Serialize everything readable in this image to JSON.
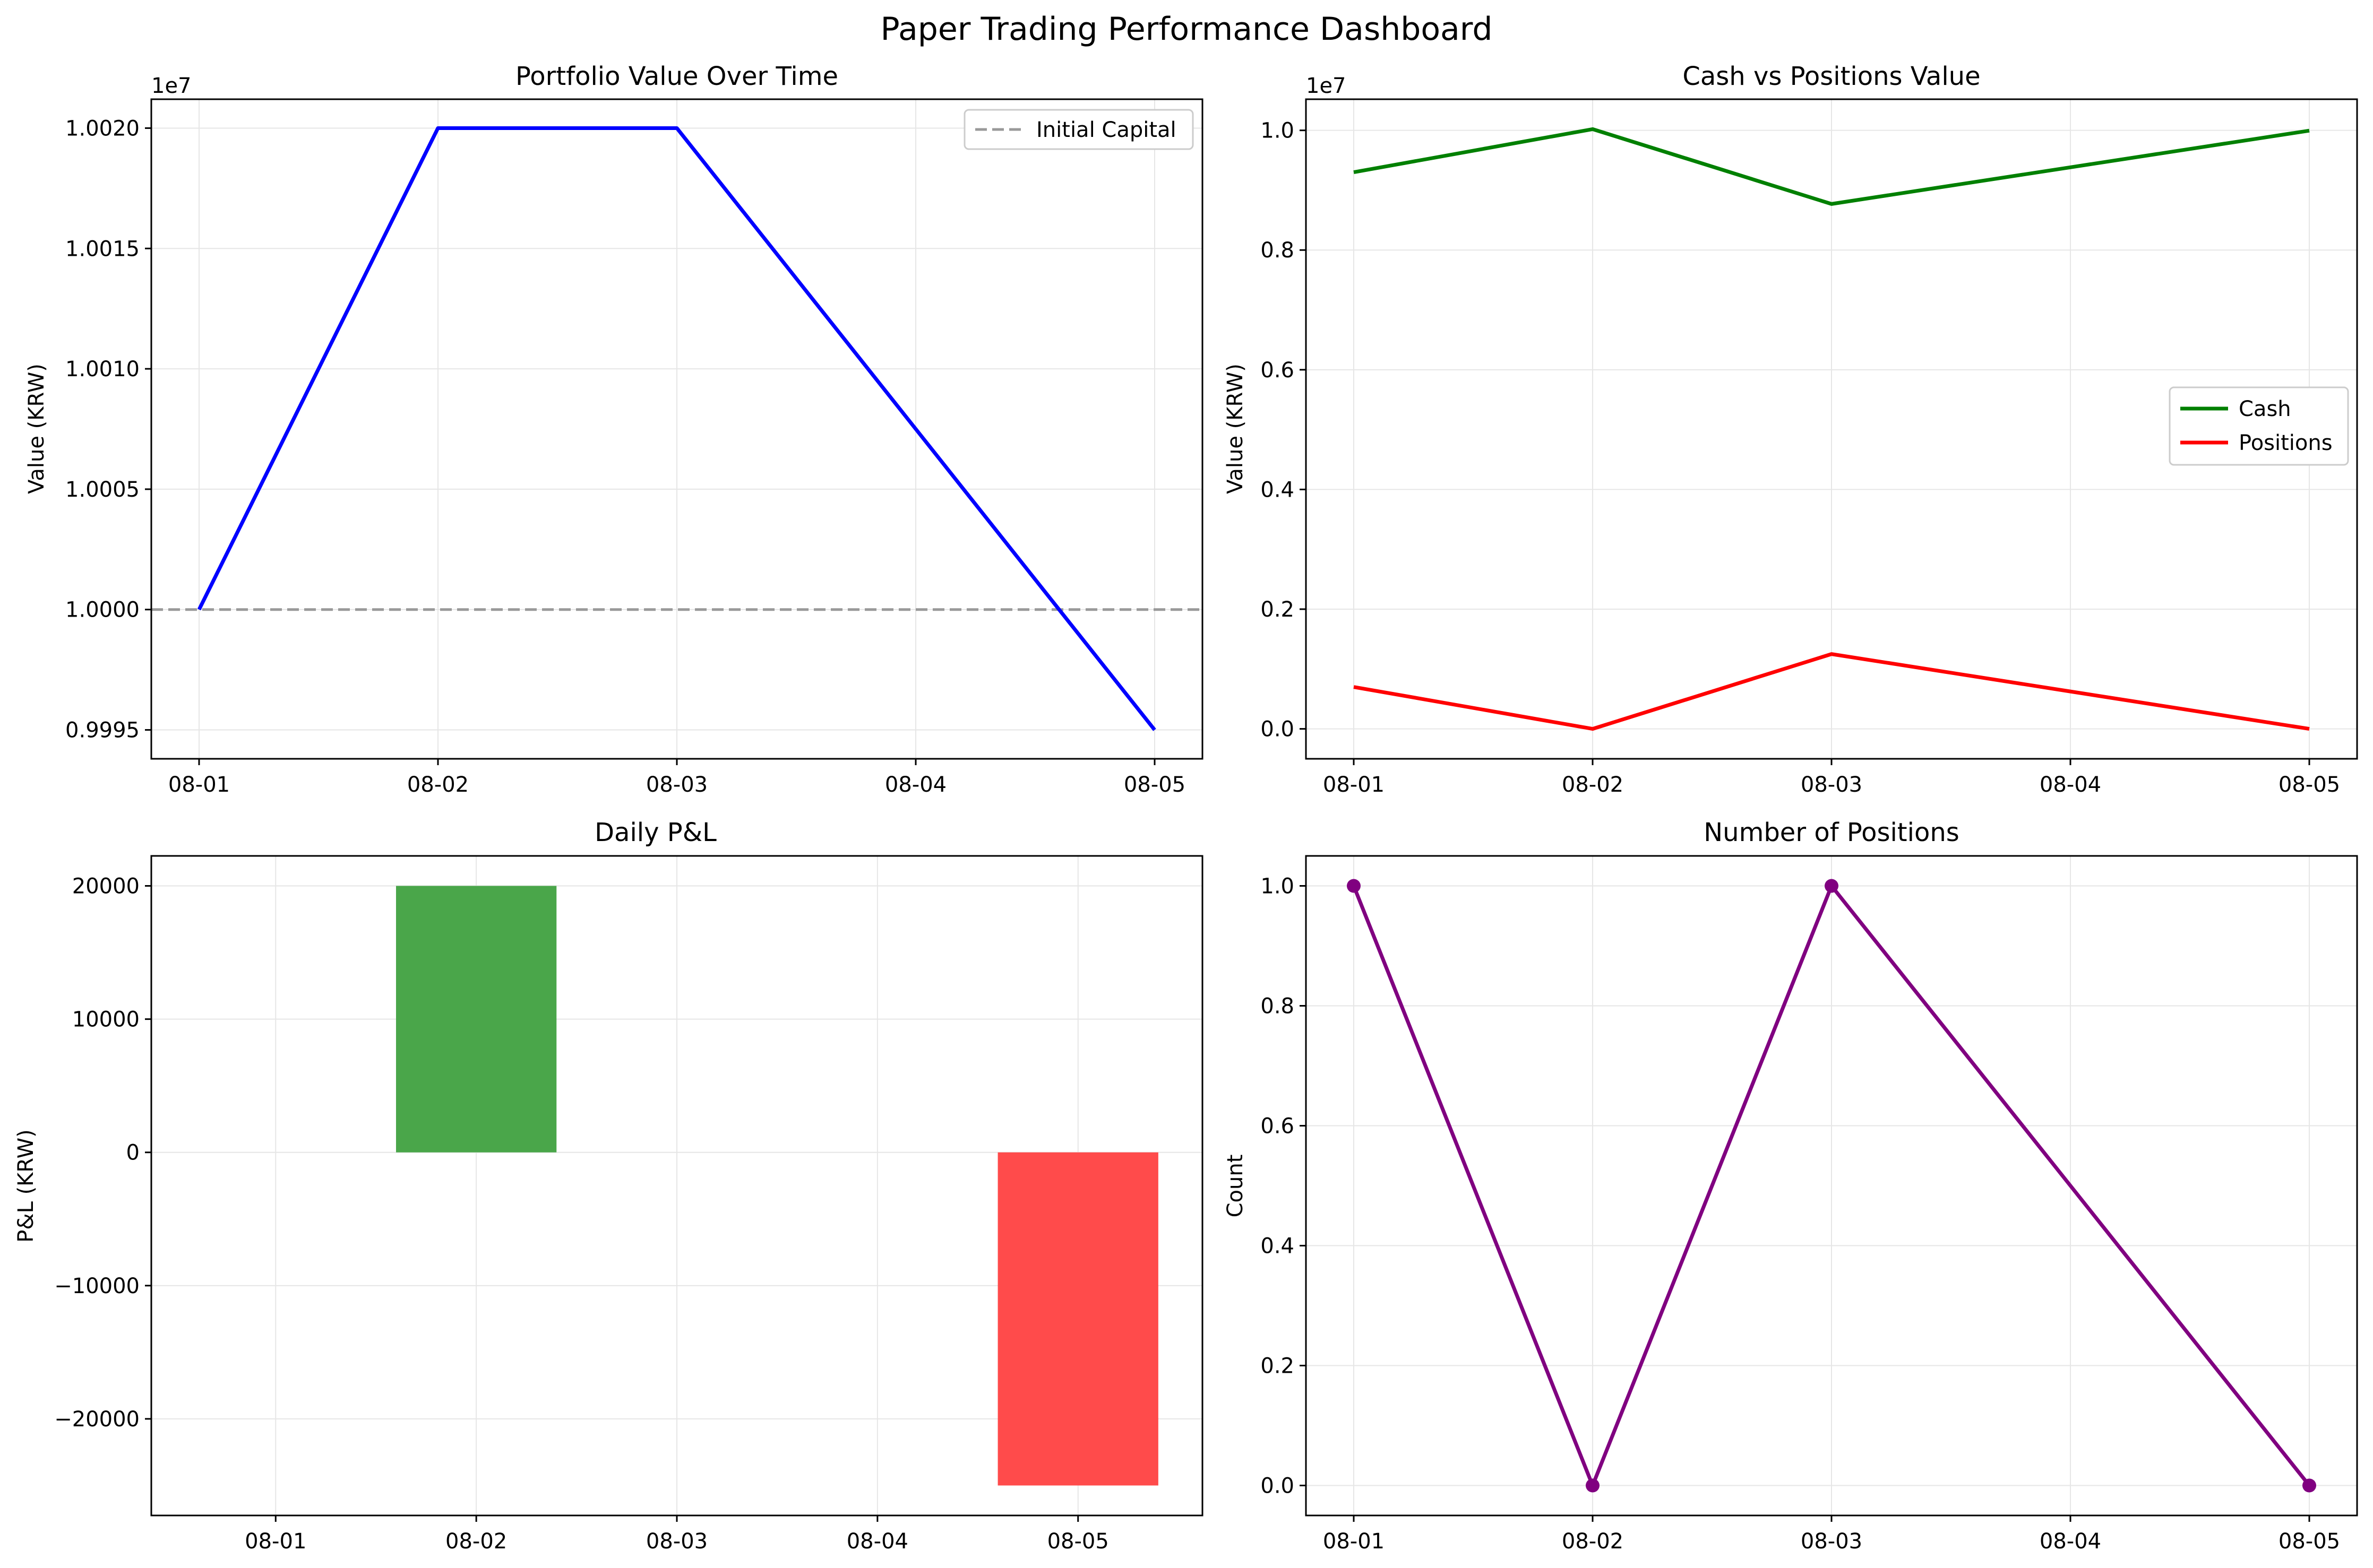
{
  "title": "Paper Trading Performance Dashboard",
  "colors": {
    "portfolio": "#0000ff",
    "initial_capital": "#999999",
    "cash": "#008000",
    "positions": "#ff0000",
    "pnl_positive": "#4aa64a",
    "pnl_negative": "#ff4b4b",
    "count": "#800080",
    "grid": "#e6e6e6"
  },
  "chart_data": [
    {
      "type": "line",
      "title": "Portfolio Value Over Time",
      "xlabel": "",
      "ylabel": "Value (KRW)",
      "offset_label": "1e7",
      "categories": [
        "08-01",
        "08-02",
        "08-03",
        "08-04",
        "08-05"
      ],
      "series": [
        {
          "values": [
            10000000,
            10020000,
            10020000,
            null,
            9995000
          ]
        }
      ],
      "reference_line": {
        "name": "Initial Capital",
        "value": 10000000,
        "style": "dashed"
      },
      "yticks": [
        9995000,
        10000000,
        10005000,
        10010000,
        10015000,
        10020000
      ],
      "ytick_labels": [
        "0.9995",
        "1.0000",
        "1.0005",
        "1.0010",
        "1.0015",
        "1.0020"
      ],
      "ylim": [
        9993800,
        10021200
      ],
      "xlim_index": [
        -0.2,
        4.2
      ],
      "grid": true,
      "legend": "top-right"
    },
    {
      "type": "line",
      "title": "Cash vs Positions Value",
      "xlabel": "",
      "ylabel": "Value (KRW)",
      "offset_label": "1e7",
      "categories": [
        "08-01",
        "08-02",
        "08-03",
        "08-04",
        "08-05"
      ],
      "series": [
        {
          "name": "Cash",
          "values": [
            9300000,
            10020000,
            8770000,
            null,
            9995000
          ]
        },
        {
          "name": "Positions",
          "values": [
            700000,
            0,
            1250000,
            null,
            0
          ]
        }
      ],
      "yticks": [
        0,
        2000000,
        4000000,
        6000000,
        8000000,
        10000000
      ],
      "ytick_labels": [
        "0.0",
        "0.2",
        "0.4",
        "0.6",
        "0.8",
        "1.0"
      ],
      "ylim": [
        -500000,
        10520000
      ],
      "xlim_index": [
        -0.2,
        4.2
      ],
      "grid": true,
      "legend": "center-right"
    },
    {
      "type": "bar",
      "title": "Daily P&L",
      "xlabel": "",
      "ylabel": "P&L (KRW)",
      "categories": [
        "08-01",
        "08-02",
        "08-03",
        "08-04",
        "08-05"
      ],
      "values": [
        0,
        20000,
        0,
        0,
        -25000
      ],
      "yticks": [
        -20000,
        -10000,
        0,
        10000,
        20000
      ],
      "ytick_labels": [
        "−20000",
        "−10000",
        "0",
        "10000",
        "20000"
      ],
      "ylim": [
        -27250,
        22250
      ],
      "xlim_index": [
        -0.62,
        4.62
      ],
      "grid": true
    },
    {
      "type": "line",
      "title": "Number of Positions",
      "xlabel": "",
      "ylabel": "Count",
      "categories": [
        "08-01",
        "08-02",
        "08-03",
        "08-04",
        "08-05"
      ],
      "series": [
        {
          "values": [
            1,
            0,
            1,
            null,
            0
          ],
          "markers": true
        }
      ],
      "yticks": [
        0,
        0.2,
        0.4,
        0.6,
        0.8,
        1.0
      ],
      "ytick_labels": [
        "0.0",
        "0.2",
        "0.4",
        "0.6",
        "0.8",
        "1.0"
      ],
      "ylim": [
        -0.05,
        1.05
      ],
      "xlim_index": [
        -0.2,
        4.2
      ],
      "grid": true
    }
  ]
}
